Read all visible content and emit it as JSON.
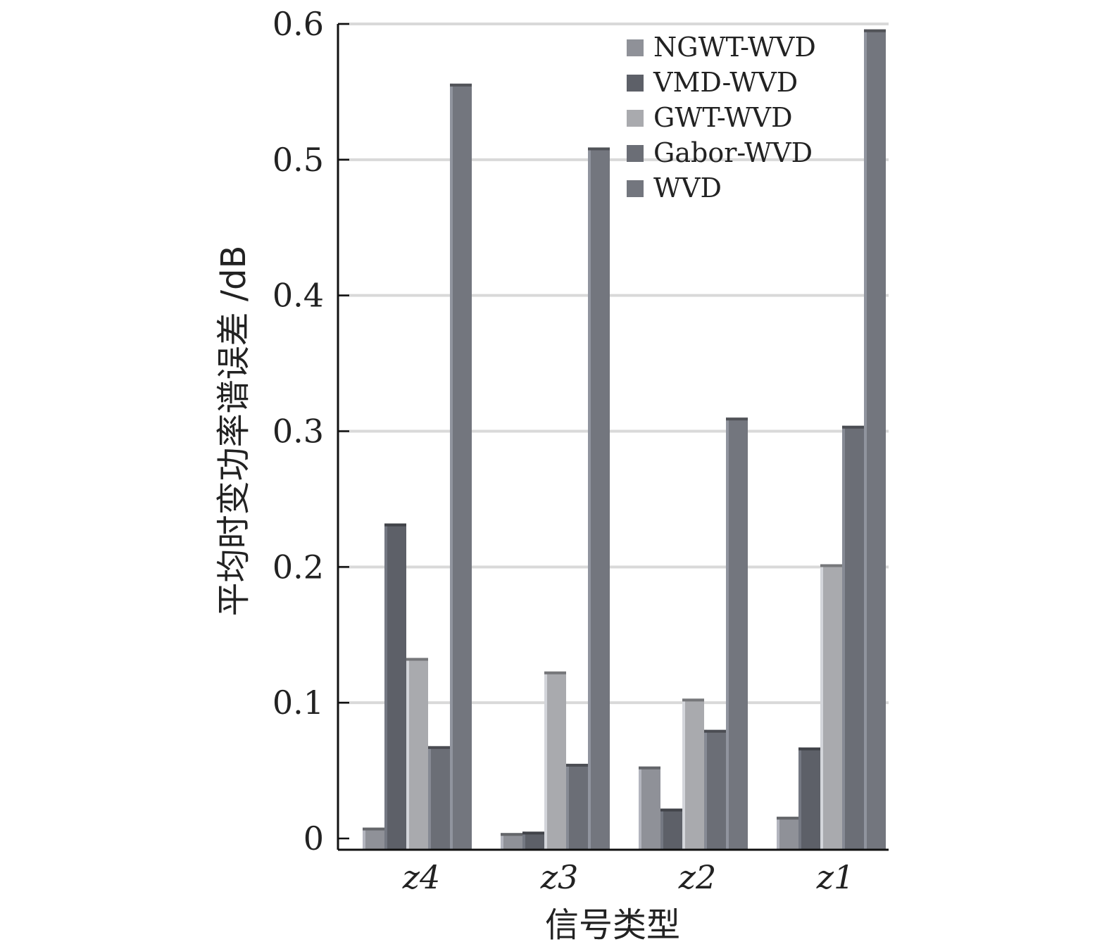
{
  "chart_data": {
    "type": "bar",
    "title": "",
    "xlabel": "信号类型",
    "ylabel": "平均时变功率谱误差 /dB",
    "categories": [
      "z4",
      "z3",
      "z2",
      "z1"
    ],
    "series": [
      {
        "name": "NGWT-WVD",
        "values": [
          0.008,
          0.004,
          0.053,
          0.016
        ]
      },
      {
        "name": "VMD-WVD",
        "values": [
          0.232,
          0.005,
          0.022,
          0.067
        ]
      },
      {
        "name": "GWT-WVD",
        "values": [
          0.133,
          0.123,
          0.103,
          0.202
        ]
      },
      {
        "name": "Gabor-WVD",
        "values": [
          0.068,
          0.055,
          0.08,
          0.304
        ]
      },
      {
        "name": "WVD",
        "values": [
          0.556,
          0.509,
          0.31,
          0.596
        ]
      }
    ],
    "ylim": [
      0,
      0.6
    ],
    "yticks": [
      "0",
      "0.1",
      "0.2",
      "0.3",
      "0.4",
      "0.5",
      "0.6"
    ],
    "grid": true,
    "legend_position": "top-right",
    "colors": {
      "NGWT-WVD": "#8f9198",
      "VMD-WVD": "#5d6068",
      "GWT-WVD": "#a9aaae",
      "Gabor-WVD": "#6b6e76",
      "WVD": "#73767e"
    }
  }
}
